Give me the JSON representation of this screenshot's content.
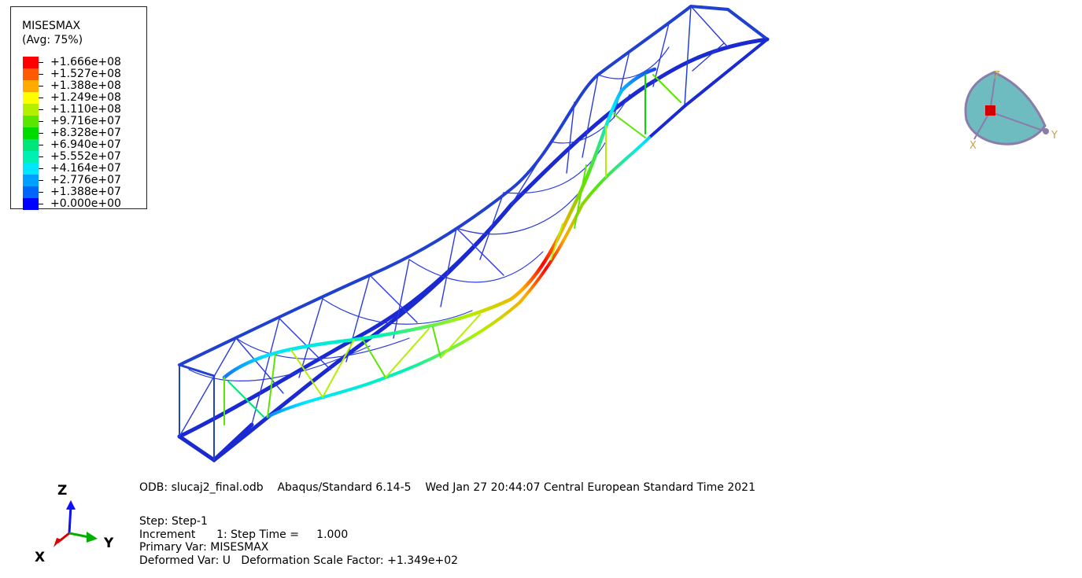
{
  "legend": {
    "title": "MISESMAX",
    "subtitle": "(Avg: 75%)",
    "items": [
      {
        "label": "+1.666e+08",
        "color": "#ff0000"
      },
      {
        "label": "+1.527e+08",
        "color": "#ff5a00"
      },
      {
        "label": "+1.388e+08",
        "color": "#ffaa00"
      },
      {
        "label": "+1.249e+08",
        "color": "#ffff00"
      },
      {
        "label": "+1.110e+08",
        "color": "#b2f000"
      },
      {
        "label": "+9.716e+07",
        "color": "#5ae600"
      },
      {
        "label": "+8.328e+07",
        "color": "#00dc00"
      },
      {
        "label": "+6.940e+07",
        "color": "#00e678"
      },
      {
        "label": "+5.552e+07",
        "color": "#00f0b4"
      },
      {
        "label": "+4.164e+07",
        "color": "#00e6ff"
      },
      {
        "label": "+2.776e+07",
        "color": "#00a0ff"
      },
      {
        "label": "+1.388e+07",
        "color": "#0064ff"
      },
      {
        "label": "+0.000e+00",
        "color": "#0000ff"
      }
    ]
  },
  "viewcube": {
    "labels": {
      "z": "Z",
      "x": "X",
      "y": "Y"
    },
    "colors": {
      "face": "#6fbcc0",
      "edge": "#8a7dab",
      "center": "#d40000",
      "label": "#c8a048"
    }
  },
  "triad": {
    "labels": {
      "z": "Z",
      "y": "Y",
      "x": "X"
    },
    "colors": {
      "z": "#1010ff",
      "y": "#00b000",
      "x": "#dd0000"
    }
  },
  "info": {
    "odb_line": "ODB: slucaj2_final.odb    Abaqus/Standard 6.14-5    Wed Jan 27 20:44:07 Central European Standard Time 2021",
    "step_line": "Step: Step-1",
    "increment_line": "Increment      1: Step Time =     1.000",
    "primary_line": "Primary Var: MISESMAX",
    "deformed_line": "Deformed Var: U   Deformation Scale Factor: +1.349e+02"
  },
  "model": {
    "colors": {
      "frame": "#1e1ec8",
      "frame_light": "#2a5ae0",
      "chord_gradient": [
        "#1a4cf0",
        "#00a0ff",
        "#00f0b4",
        "#5ae600",
        "#b2f000",
        "#ffaa00",
        "#ff0000"
      ]
    }
  }
}
